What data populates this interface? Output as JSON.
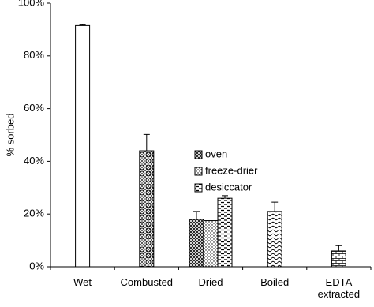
{
  "chart_data": {
    "type": "bar",
    "y_label": "% sorbed",
    "categories": [
      "Wet",
      "Combusted",
      "Dried",
      "Boiled",
      "EDTA extracted"
    ],
    "values": [
      91.5,
      44,
      null,
      21,
      6
    ],
    "errors": [
      0.3,
      6.2,
      null,
      3.5,
      2
    ],
    "patterns": [
      "none",
      "circles",
      null,
      "waves",
      "bricks"
    ],
    "series": [
      {
        "name": "oven",
        "color": "#000000",
        "pattern": "crosshatch",
        "values": [
          null,
          null,
          18,
          null,
          null
        ],
        "errors": [
          null,
          null,
          3,
          null,
          null
        ]
      },
      {
        "name": "freeze-drier",
        "color": "#000000",
        "pattern": "dots",
        "values": [
          null,
          null,
          17.5,
          null,
          null
        ],
        "errors": [
          null,
          null,
          null,
          null,
          null
        ]
      },
      {
        "name": "desiccator",
        "color": "#000000",
        "pattern": "dashes",
        "values": [
          null,
          null,
          26,
          null,
          null
        ],
        "errors": [
          null,
          null,
          1,
          null,
          null
        ]
      }
    ],
    "ylim": [
      0,
      100
    ],
    "yticks": [
      {
        "value": 0,
        "label": "0%"
      },
      {
        "value": 20,
        "label": "20%"
      },
      {
        "value": 40,
        "label": "40%"
      },
      {
        "value": 60,
        "label": "60%"
      },
      {
        "value": 80,
        "label": "80%"
      },
      {
        "value": 100,
        "label": "100%"
      }
    ],
    "grid": false,
    "legend": "center"
  }
}
